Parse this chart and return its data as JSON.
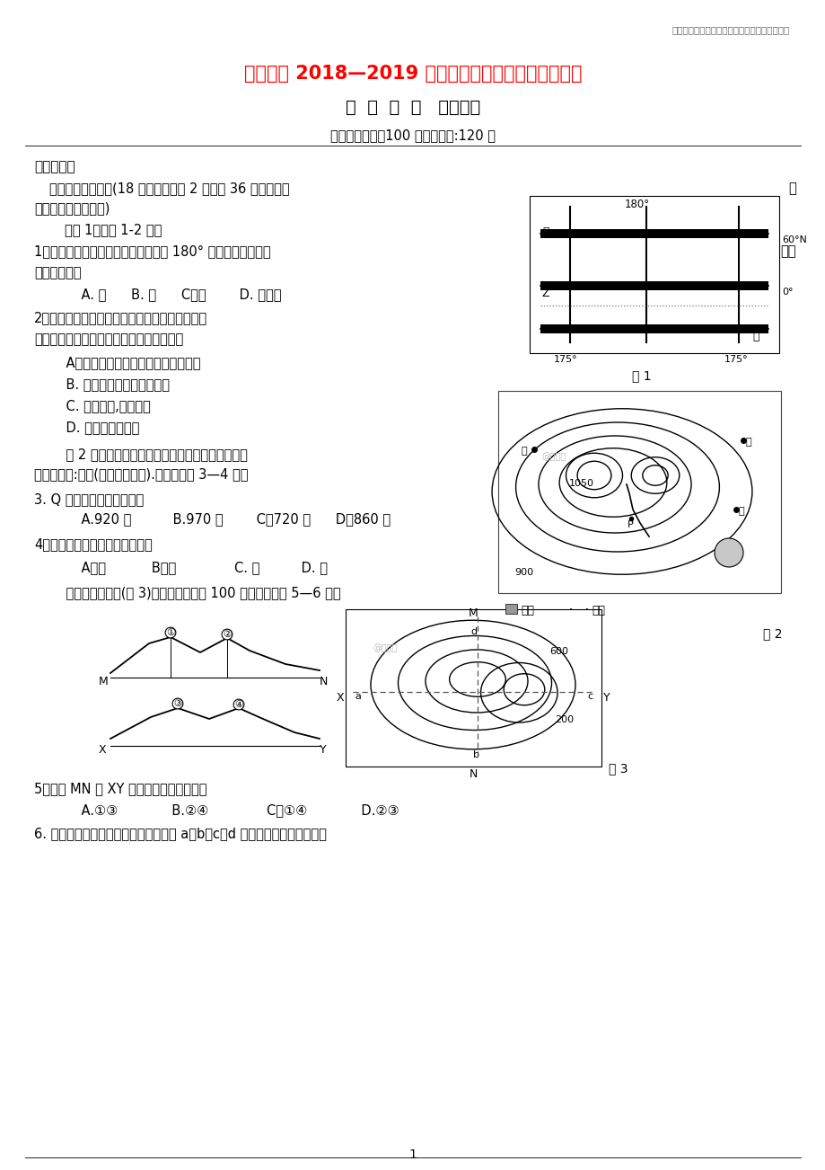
{
  "bg_color": "#ffffff",
  "header_text": "江苏省姜堰二中高二地理上学期第二次月考试题",
  "title_text": "姜堰二中 2018—2019 学年度第一学期第二次月考试卷",
  "subtitle_text": "高  二  地  理   （选修）",
  "time_text": "本卷完成时间：100 分钟，满分:120 分",
  "section1": "一、选择题",
  "section1a": "（一）单项选择题(18 小题，每小题 2 分，共 36 分，每小题",
  "section1a_right": "只",
  "section1b": "有一个答案是正确的)",
  "read_fig1": "读图 1，回答 1-2 题。",
  "q1_line1": "1。若甲、乙、丙三艘船同时出发驶向 180° 经线，而且同时到",
  "q1_right": "达，",
  "q1_line2": "速度最快的是",
  "q1_opts": "    A. 甲      B. 乙      C。丙        D. 乙和丙",
  "q2_line1": "2。若图示甲、乙、丙三处阴影面积相同，则关于",
  "q2_line2": "三个阴影区域比例尺大小的叙述，正确的是",
  "q2a": "    A。甲的比例尺最小，丙的比例尺最大",
  "q2b": "    B. 甲、乙、丙的比例尺相同",
  "q2c": "    C. 甲大于乙,乙大于丙",
  "q2d": "    D. 乙的比例尺最小",
  "fig2_intro1": "    图 2 为某地理研究性学习小组绘制的我国某地等高",
  "fig2_intro2": "线图（单位:米）(尚未全部完成).读图，回答 3—4 题：",
  "q3": "3. Q 处湖泊的海拔最可能是",
  "q3_opts": "    A.920 米          B.970 米        C。720 米      D。860 米",
  "q4": "4。图中最可能形成瀑布的地点是",
  "q4_right": "图 2",
  "q4_opts": "    A。甲           B。乙              C. 丙          D. 丁",
  "fig3_intro": "    读等高线示意图(图 3)，图中等高距为 100 米，据图完成 5—6 题。",
  "q5": "5。虚线 MN 与 XY 的交点在剖面图上的是",
  "q5_opts": "    A.①③             B.②④              C。①④             D.②③",
  "q6": "6. 如果该图位于我国东部沿海地区，在 a、b、c、d 四点中，降水量最少的是",
  "fig2_legend_lake": "■ 湖泊",
  "fig2_legend_river": "河流",
  "fig3_label": "图 3",
  "page_num": "1"
}
